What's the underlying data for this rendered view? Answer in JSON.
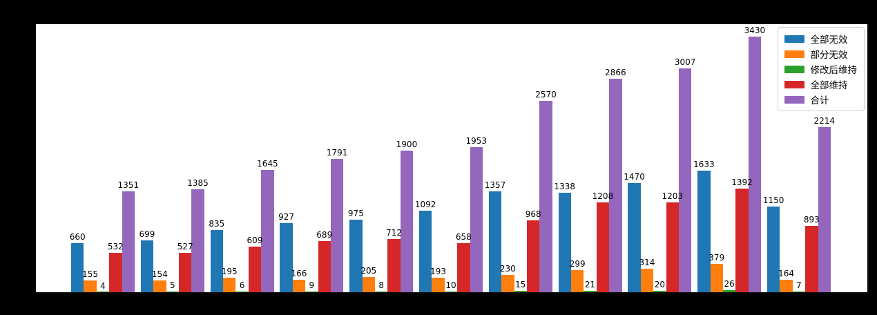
{
  "figure": {
    "background_color": "#000000",
    "plot_background_color": "#ffffff",
    "title": ""
  },
  "chart_data": {
    "type": "bar",
    "title": "",
    "xlabel": "",
    "ylabel": "",
    "ylim": [
      0,
      3600
    ],
    "grid": false,
    "num_groups": 11,
    "x_tick_labels_visible": false,
    "y_tick_labels_visible": false,
    "bar_value_labels": true,
    "legend_position": "upper-right",
    "series": [
      {
        "key": "all-invalid",
        "name": "全部无效",
        "color": "#1f77b4",
        "values": [
          660,
          699,
          835,
          927,
          975,
          1092,
          1357,
          1338,
          1470,
          1633,
          1150
        ]
      },
      {
        "key": "partial-invalid",
        "name": "部分无效",
        "color": "#ff7f0e",
        "values": [
          155,
          154,
          195,
          166,
          205,
          193,
          230,
          299,
          314,
          379,
          164
        ]
      },
      {
        "key": "maintained-after-amendment",
        "name": "修改后维持",
        "color": "#2ca02c",
        "values": [
          4,
          5,
          6,
          9,
          8,
          10,
          15,
          21,
          20,
          26,
          7
        ]
      },
      {
        "key": "all-maintained",
        "name": "全部维持",
        "color": "#d62728",
        "values": [
          532,
          527,
          609,
          689,
          712,
          658,
          968,
          1208,
          1203,
          1392,
          893
        ]
      },
      {
        "key": "total",
        "name": "合计",
        "color": "#9467bd",
        "values": [
          1351,
          1385,
          1645,
          1791,
          1900,
          1953,
          2570,
          2866,
          3007,
          3430,
          2214
        ]
      }
    ]
  }
}
